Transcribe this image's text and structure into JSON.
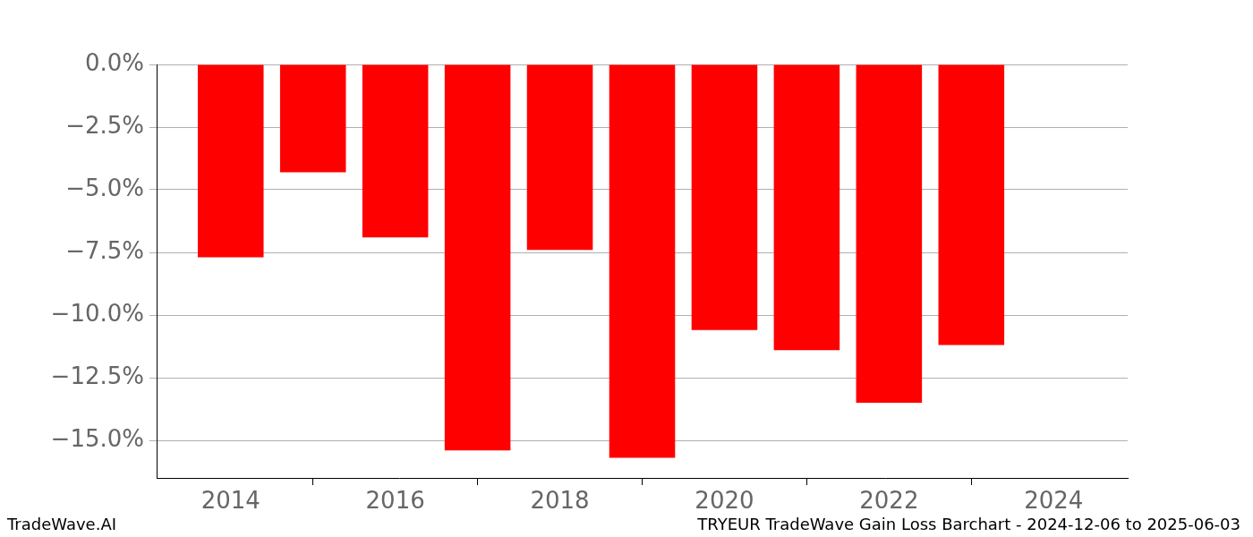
{
  "chart_data": {
    "type": "bar",
    "title": "TRYEUR TradeWave Gain Loss Barchart - 2024-12-06 to 2025-06-03",
    "annotations": [
      "TradeWave.AI"
    ],
    "x": [
      2014,
      2015,
      2016,
      2017,
      2018,
      2019,
      2020,
      2021,
      2022,
      2023
    ],
    "values": [
      -7.7,
      -4.3,
      -6.9,
      -15.4,
      -7.4,
      -15.7,
      -10.6,
      -11.4,
      -13.5,
      -11.2
    ],
    "color": "#ff0000",
    "xlim": [
      2013.1,
      2024.9
    ],
    "xticks": [
      2014,
      2016,
      2018,
      2020,
      2022,
      2024
    ],
    "ylim": [
      -16.5,
      0
    ],
    "yticks": [
      {
        "value": 0,
        "label": "0.0%"
      },
      {
        "value": -2.5,
        "label": "−2.5%"
      },
      {
        "value": -5,
        "label": "−5.0%"
      },
      {
        "value": -7.5,
        "label": "−7.5%"
      },
      {
        "value": -10,
        "label": "−10.0%"
      },
      {
        "value": -12.5,
        "label": "−12.5%"
      },
      {
        "value": -15,
        "label": "−15.0%"
      }
    ],
    "grid": true
  }
}
